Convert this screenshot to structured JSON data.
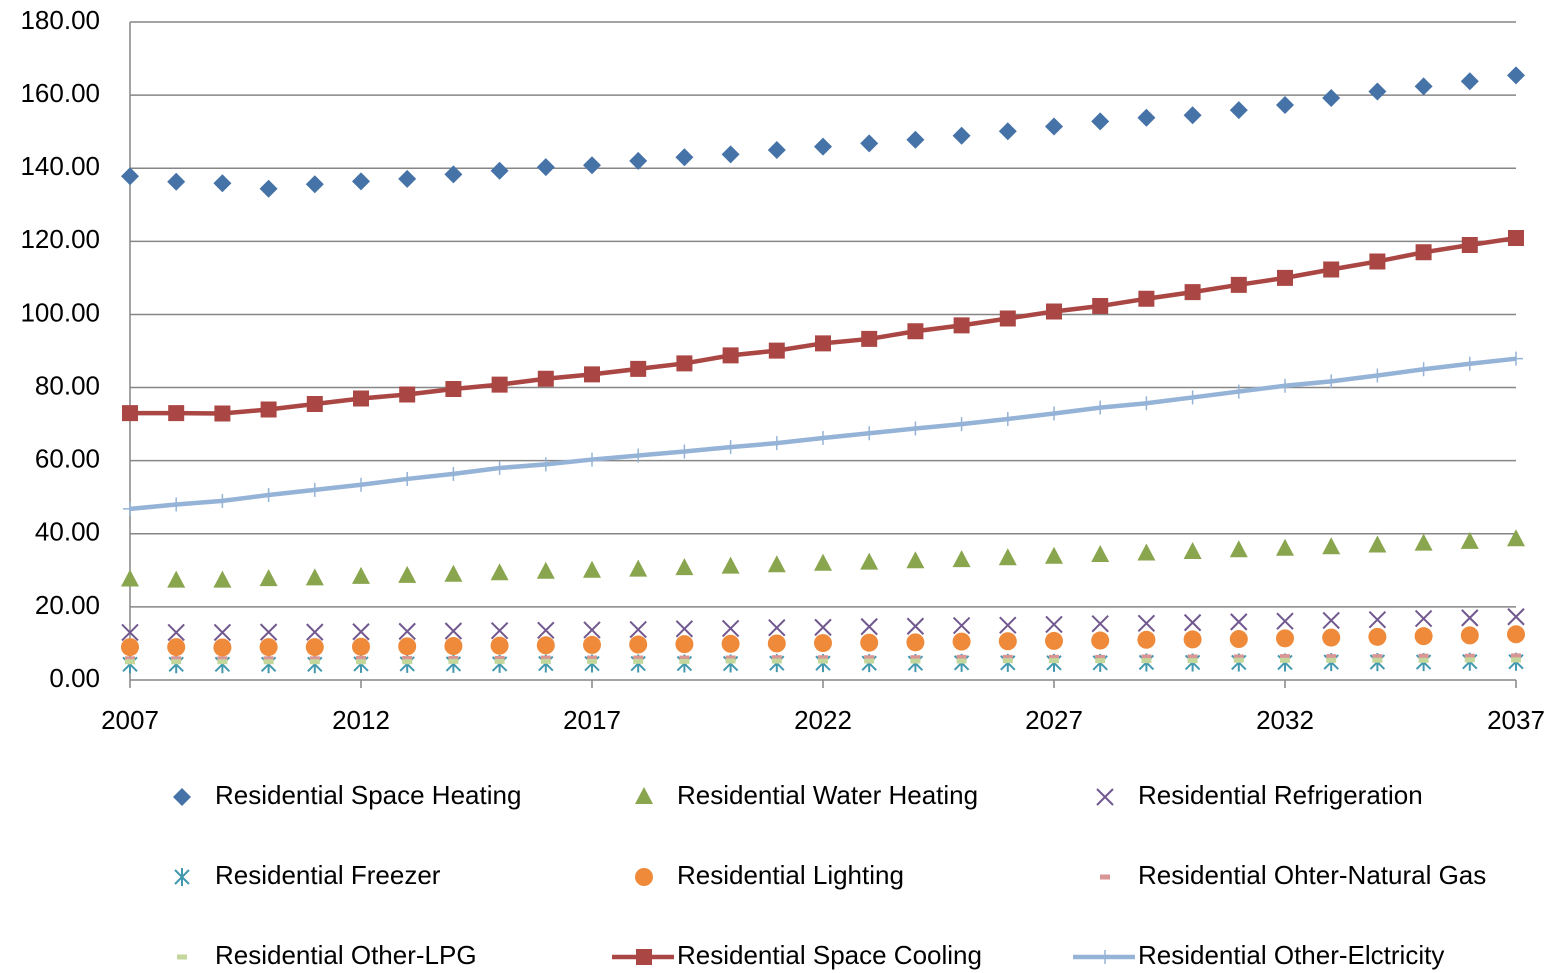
{
  "chart_data": {
    "type": "scatter",
    "x": [
      2007,
      2008,
      2009,
      2010,
      2011,
      2012,
      2013,
      2014,
      2015,
      2016,
      2017,
      2018,
      2019,
      2020,
      2021,
      2022,
      2023,
      2024,
      2025,
      2026,
      2027,
      2028,
      2029,
      2030,
      2031,
      2032,
      2033,
      2034,
      2035,
      2036,
      2037
    ],
    "xlim": [
      2007,
      2037
    ],
    "xticks": [
      2007,
      2012,
      2017,
      2022,
      2027,
      2032,
      2037
    ],
    "ylim": [
      0,
      180
    ],
    "yticks": [
      {
        "value": 0,
        "label": "0.00"
      },
      {
        "value": 20,
        "label": "20.00"
      },
      {
        "value": 40,
        "label": "40.00"
      },
      {
        "value": 60,
        "label": "60.00"
      },
      {
        "value": 80,
        "label": "80.00"
      },
      {
        "value": 100,
        "label": "100.00"
      },
      {
        "value": 120,
        "label": "120.00"
      },
      {
        "value": 140,
        "label": "140.00"
      },
      {
        "value": 160,
        "label": "160.00"
      },
      {
        "value": 180,
        "label": "180.00"
      }
    ],
    "grid": true,
    "legend": "bottom",
    "series": [
      {
        "name": "Residential Space Heating",
        "color": "#4572a7",
        "marker": "diamond",
        "line": false,
        "values": [
          137.8,
          136.3,
          135.9,
          134.4,
          135.6,
          136.4,
          137.1,
          138.3,
          139.3,
          140.3,
          140.8,
          142.0,
          143.0,
          143.8,
          145.0,
          145.9,
          146.8,
          147.8,
          148.9,
          150.1,
          151.4,
          152.8,
          153.8,
          154.5,
          155.9,
          157.3,
          159.2,
          161.0,
          162.4,
          163.8,
          165.4
        ]
      },
      {
        "name": "Residential Water Heating",
        "color": "#89a54e",
        "marker": "triangle",
        "line": false,
        "values": [
          27.5,
          27.2,
          27.2,
          27.6,
          27.8,
          28.2,
          28.5,
          28.8,
          29.2,
          29.6,
          29.9,
          30.2,
          30.6,
          31.0,
          31.4,
          31.8,
          32.1,
          32.5,
          32.8,
          33.3,
          33.7,
          34.2,
          34.6,
          35.0,
          35.5,
          35.9,
          36.3,
          36.8,
          37.3,
          37.8,
          38.5
        ]
      },
      {
        "name": "Residential Refrigeration",
        "color": "#71588f",
        "marker": "x",
        "line": false,
        "values": [
          13.0,
          13.0,
          13.0,
          13.1,
          13.1,
          13.2,
          13.3,
          13.4,
          13.5,
          13.6,
          13.7,
          13.8,
          14.0,
          14.1,
          14.3,
          14.4,
          14.6,
          14.7,
          14.9,
          15.0,
          15.2,
          15.4,
          15.5,
          15.7,
          15.9,
          16.1,
          16.3,
          16.5,
          16.8,
          17.0,
          17.3
        ]
      },
      {
        "name": "Residential Freezer",
        "color": "#4198af",
        "marker": "asterisk",
        "line": false,
        "values": [
          4.3,
          4.3,
          4.3,
          4.3,
          4.3,
          4.4,
          4.4,
          4.4,
          4.4,
          4.5,
          4.5,
          4.5,
          4.5,
          4.5,
          4.6,
          4.6,
          4.6,
          4.6,
          4.7,
          4.7,
          4.7,
          4.7,
          4.8,
          4.8,
          4.8,
          4.8,
          4.9,
          4.9,
          4.9,
          5.0,
          5.0
        ]
      },
      {
        "name": "Residential Lighting",
        "color": "#ee8a3a",
        "marker": "circle",
        "line": false,
        "values": [
          9.0,
          9.0,
          8.9,
          9.0,
          9.0,
          9.1,
          9.2,
          9.3,
          9.4,
          9.5,
          9.6,
          9.7,
          9.8,
          9.9,
          10.0,
          10.1,
          10.2,
          10.3,
          10.5,
          10.6,
          10.7,
          10.8,
          11.0,
          11.1,
          11.2,
          11.4,
          11.6,
          11.8,
          12.0,
          12.2,
          12.5
        ]
      },
      {
        "name": "Residential Ohter-Natural Gas",
        "color": "#d99694",
        "marker": "dash",
        "line": false,
        "values": [
          5.8,
          5.8,
          5.8,
          5.8,
          5.8,
          5.9,
          5.9,
          5.9,
          5.9,
          6.0,
          6.0,
          6.0,
          6.0,
          6.0,
          6.1,
          6.1,
          6.1,
          6.1,
          6.2,
          6.2,
          6.2,
          6.2,
          6.3,
          6.3,
          6.3,
          6.4,
          6.4,
          6.4,
          6.5,
          6.5,
          6.6
        ]
      },
      {
        "name": "Residential Other-LPG",
        "color": "#c3d69b",
        "marker": "dash",
        "line": false,
        "values": [
          5.0,
          5.0,
          5.0,
          5.0,
          5.0,
          5.0,
          5.0,
          5.1,
          5.1,
          5.1,
          5.1,
          5.1,
          5.1,
          5.2,
          5.2,
          5.2,
          5.2,
          5.2,
          5.2,
          5.3,
          5.3,
          5.3,
          5.3,
          5.3,
          5.4,
          5.4,
          5.4,
          5.4,
          5.4,
          5.5,
          5.5
        ]
      },
      {
        "name": "Residential Space Cooling",
        "color": "#aa4643",
        "marker": "square",
        "line": true,
        "values": [
          73.0,
          73.0,
          72.9,
          74.0,
          75.5,
          77.0,
          78.1,
          79.6,
          80.8,
          82.4,
          83.6,
          85.1,
          86.6,
          88.8,
          90.1,
          92.1,
          93.3,
          95.4,
          97.0,
          98.9,
          100.8,
          102.3,
          104.3,
          106.1,
          108.1,
          110.0,
          112.3,
          114.5,
          117.0,
          119.0,
          120.9
        ]
      },
      {
        "name": "Residential Other-Elctricity",
        "color": "#95b3d7",
        "marker": "plus",
        "line": true,
        "values": [
          46.8,
          48.0,
          49.0,
          50.6,
          52.0,
          53.4,
          55.0,
          56.4,
          58.0,
          59.0,
          60.3,
          61.4,
          62.5,
          63.7,
          64.8,
          66.2,
          67.5,
          68.8,
          70.0,
          71.4,
          72.9,
          74.5,
          75.7,
          77.3,
          78.9,
          80.5,
          81.7,
          83.3,
          85.0,
          86.5,
          87.9
        ]
      }
    ]
  }
}
